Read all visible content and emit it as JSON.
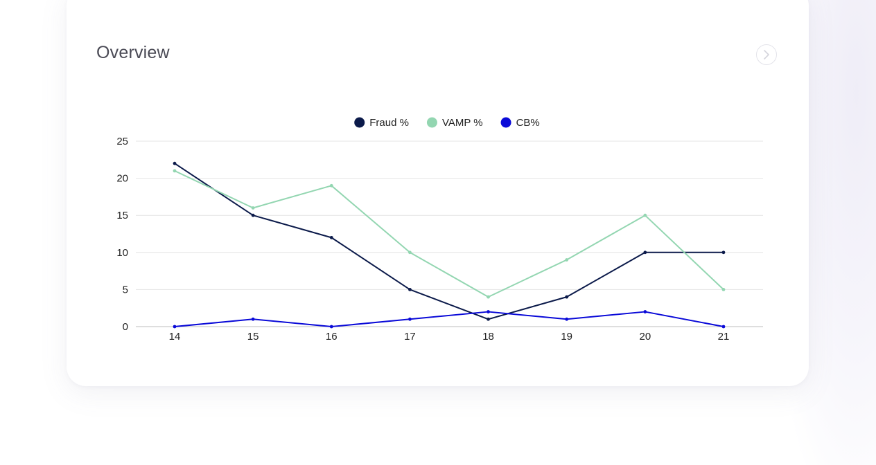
{
  "card": {
    "title": "Overview",
    "next_icon": "chevron-right-icon"
  },
  "chart_data": {
    "type": "line",
    "x": [
      14,
      15,
      16,
      17,
      18,
      19,
      20,
      21
    ],
    "xlabel": "",
    "ylabel": "",
    "ylim": [
      0,
      25
    ],
    "yticks": [
      0,
      5,
      10,
      15,
      20,
      25
    ],
    "grid": true,
    "legend_position": "top-center",
    "series": [
      {
        "name": "Fraud %",
        "color": "#0b1a4a",
        "values": [
          22,
          15,
          12,
          5,
          1,
          4,
          10,
          10
        ]
      },
      {
        "name": "VAMP %",
        "color": "#93d6b1",
        "values": [
          21,
          16,
          19,
          10,
          4,
          9,
          15,
          5
        ]
      },
      {
        "name": "CB%",
        "color": "#0a0ad8",
        "values": [
          0,
          1,
          0,
          1,
          2,
          1,
          2,
          0
        ]
      }
    ]
  }
}
